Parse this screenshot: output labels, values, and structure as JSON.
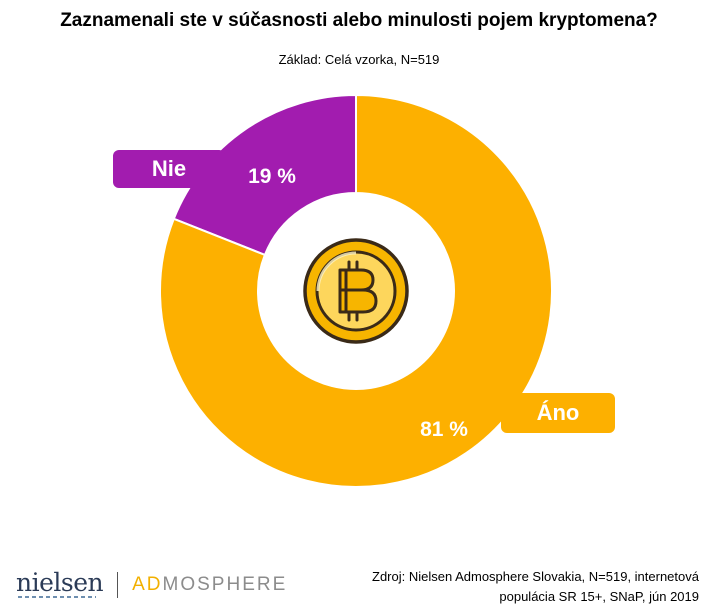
{
  "chart_data": {
    "type": "donut",
    "title": "Zaznamenali ste v súčasnosti alebo minulosti pojem kryptomena?",
    "subtitle": "Základ: Celá vzorka, N=519",
    "categories": [
      "Nie",
      "Áno"
    ],
    "values": [
      19,
      81
    ],
    "value_labels": [
      "19 %",
      "81 %"
    ],
    "colors": [
      "#a21caf",
      "#fdb000"
    ],
    "center_icon": "bitcoin-coin-icon"
  },
  "footer": {
    "logo_left": "nielsen",
    "logo_right_accent": "AD",
    "logo_right_rest": "MOSPHERE",
    "source_line1": "Zdroj: Nielsen Admosphere Slovakia, N=519, internetová",
    "source_line2": "populácia SR 15+, SNaP, jún 2019"
  }
}
